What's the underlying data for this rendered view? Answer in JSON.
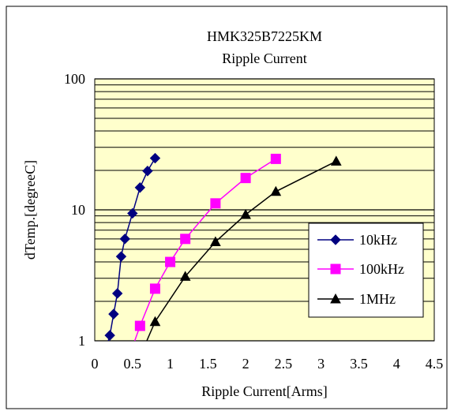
{
  "chart_data": {
    "type": "line",
    "title": "HMK325B7225KM",
    "subtitle": "Ripple Current",
    "xlabel": "Ripple Current[Arms]",
    "ylabel": "dTemp.[degreeC]",
    "xlim": [
      0,
      4.5
    ],
    "ylim": [
      1,
      100
    ],
    "y_scale": "log",
    "x_ticks": [
      "0",
      "0.5",
      "1",
      "1.5",
      "2",
      "2.5",
      "3",
      "3.5",
      "4",
      "4.5"
    ],
    "y_ticks": [
      "1",
      "10",
      "100"
    ],
    "plot_background": "#ffffcc",
    "grid": true,
    "legend_position": "right",
    "series": [
      {
        "name": "10kHz",
        "color": "#000080",
        "marker": "diamond",
        "x": [
          0.2,
          0.25,
          0.3,
          0.35,
          0.4,
          0.5,
          0.6,
          0.7,
          0.8
        ],
        "y": [
          1.1,
          1.6,
          2.3,
          4.4,
          6.0,
          9.4,
          14.8,
          19.8,
          24.8
        ],
        "curve_from": [
          0.18,
          1.0
        ]
      },
      {
        "name": "100kHz",
        "color": "#ff00ff",
        "marker": "square",
        "x": [
          0.6,
          0.8,
          1.0,
          1.2,
          1.6,
          2.0,
          2.4
        ],
        "y": [
          1.3,
          2.5,
          4.0,
          6.0,
          11.2,
          17.5,
          24.5
        ],
        "curve_from": [
          0.53,
          1.0
        ]
      },
      {
        "name": "1MHz",
        "color": "#000000",
        "marker": "triangle",
        "x": [
          0.8,
          1.2,
          1.6,
          2.0,
          2.4,
          3.2
        ],
        "y": [
          1.4,
          3.1,
          5.7,
          9.2,
          13.8,
          23.5
        ],
        "curve_from": [
          0.69,
          1.0
        ]
      }
    ]
  }
}
